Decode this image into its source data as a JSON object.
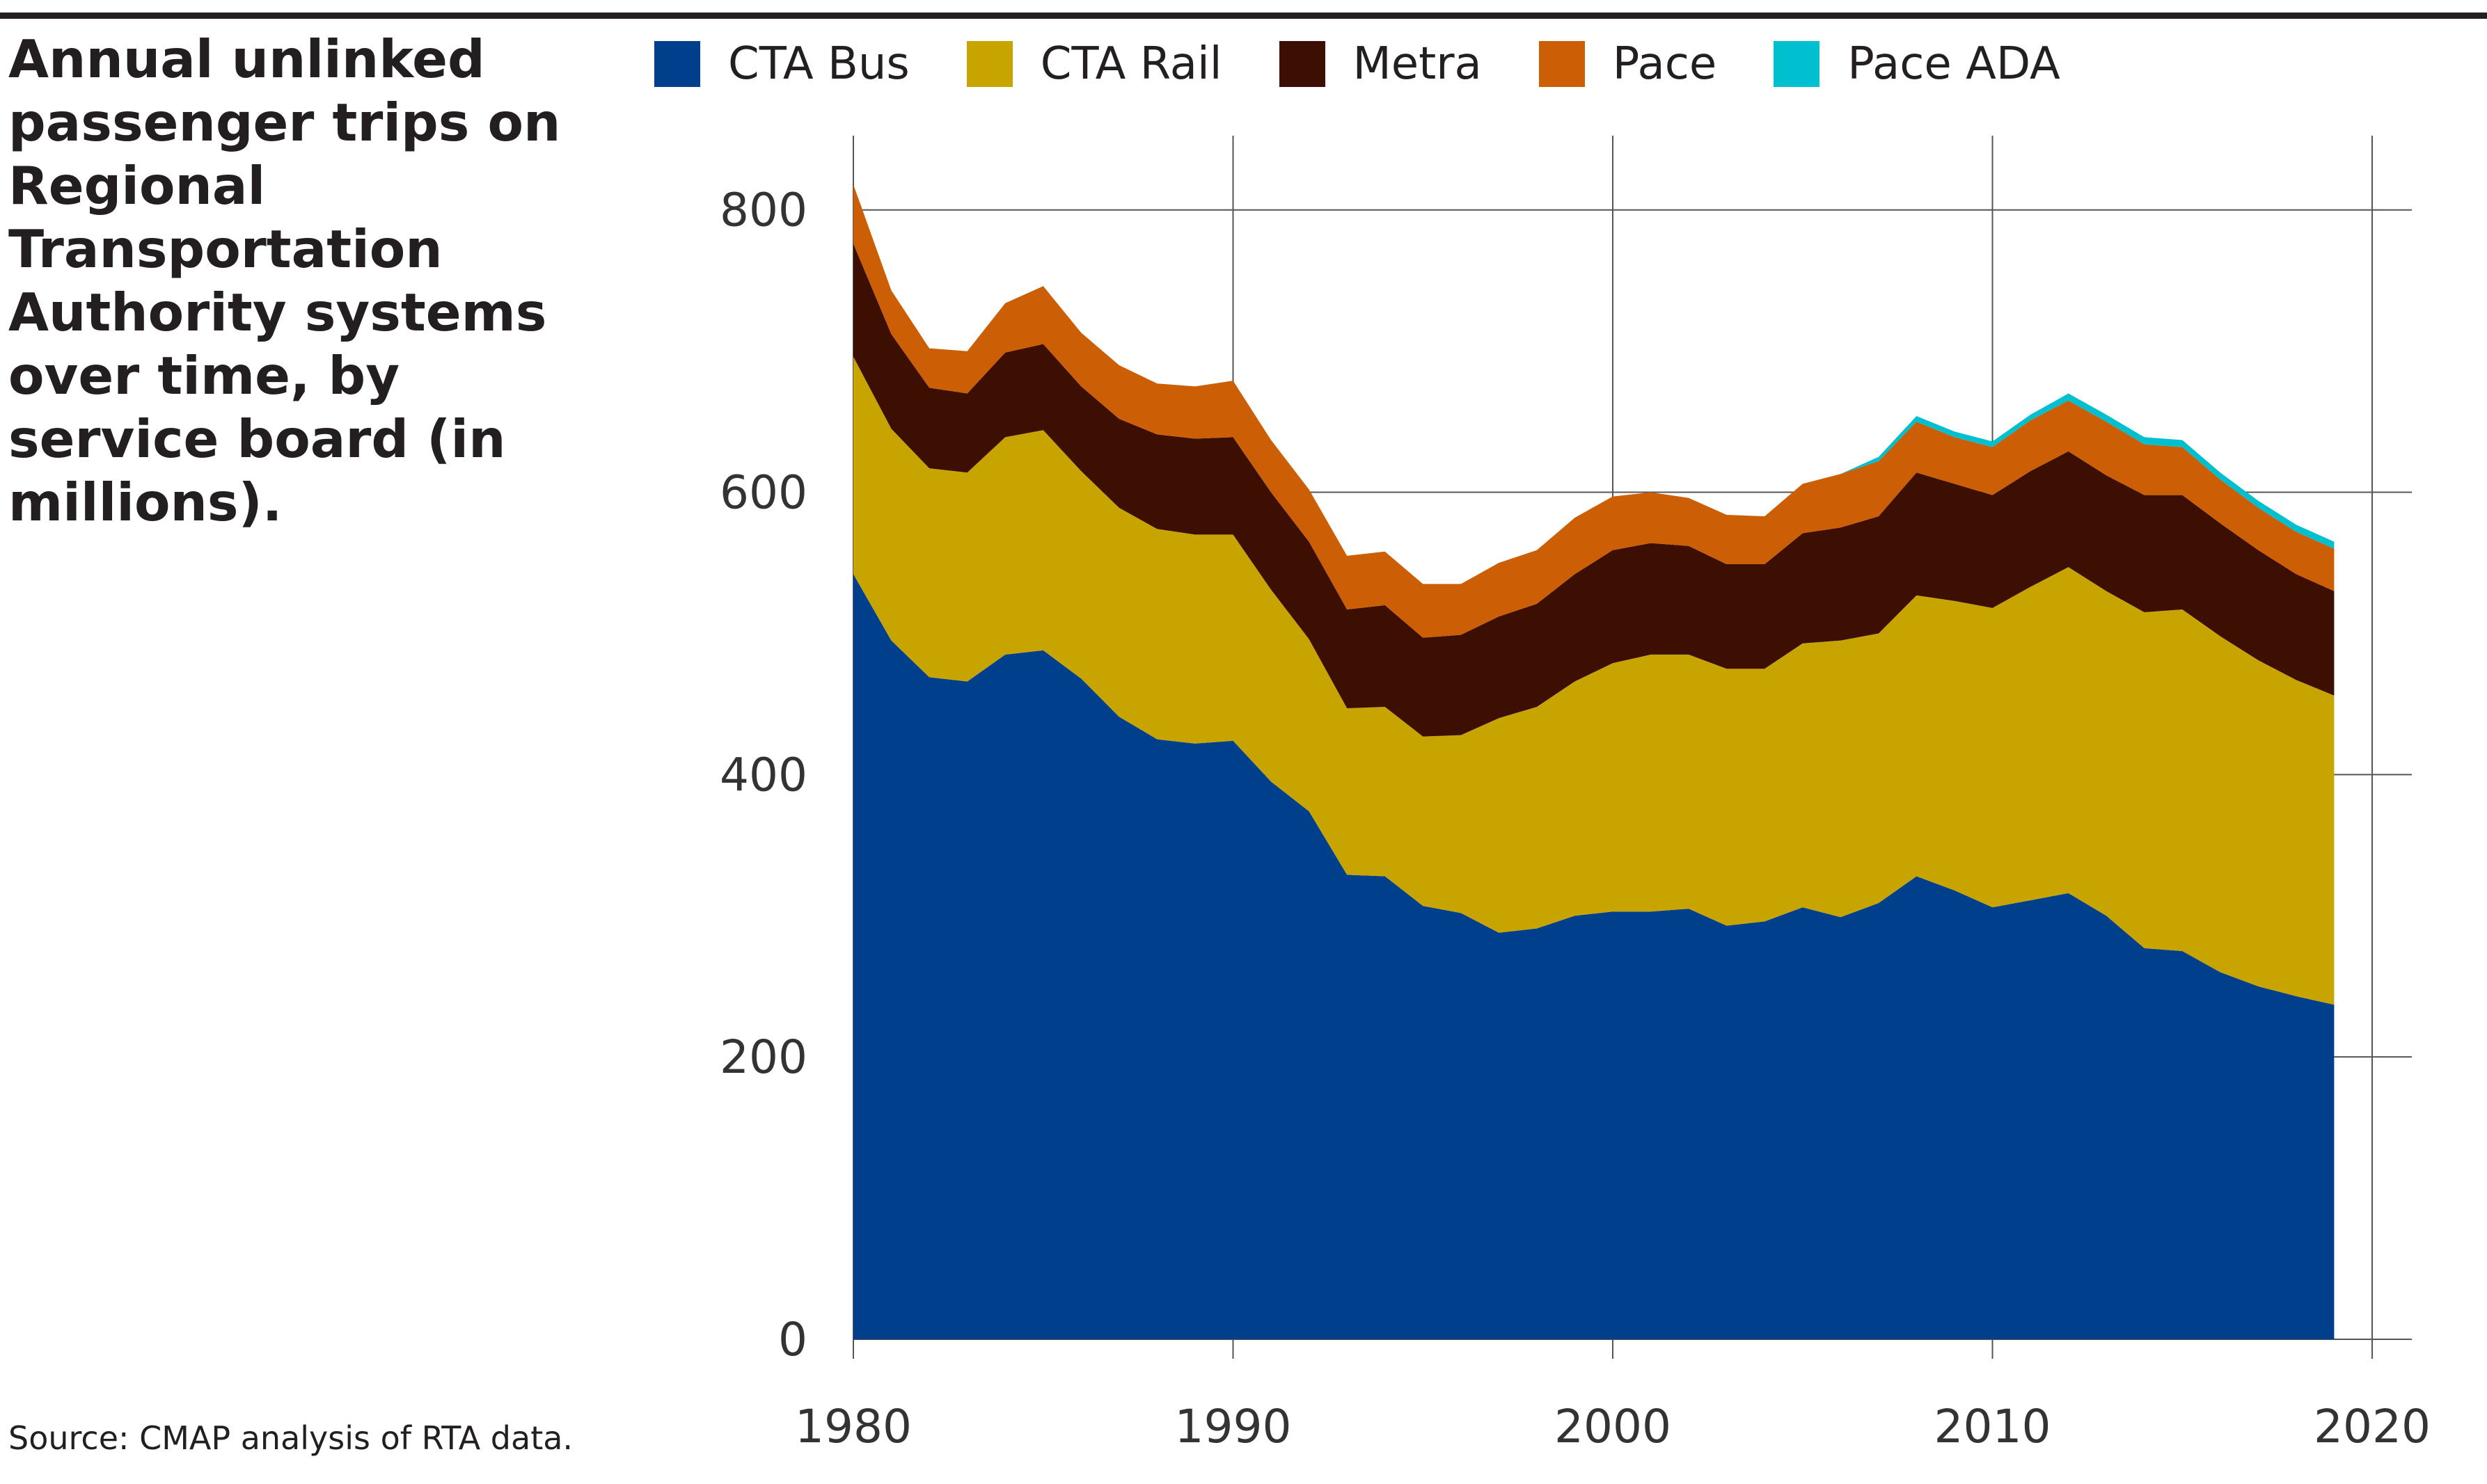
{
  "title": "Annual unlinked passenger trips on Regional Transportation Authority systems over time, by service board (in millions).",
  "source": "Source: CMAP analysis of RTA data.",
  "chart_data": {
    "type": "area",
    "stacked": true,
    "title": "Annual unlinked passenger trips on Regional Transportation Authority systems over time, by service board (in millions).",
    "xlabel": "",
    "ylabel": "",
    "xlim": [
      1980,
      2021
    ],
    "ylim": [
      0,
      860
    ],
    "x_ticks": [
      1980,
      1990,
      2000,
      2010,
      2020
    ],
    "y_ticks": [
      0,
      200,
      400,
      600,
      800
    ],
    "grid": true,
    "legend_position": "top",
    "x": [
      1980,
      1981,
      1982,
      1983,
      1984,
      1985,
      1986,
      1987,
      1988,
      1989,
      1990,
      1991,
      1992,
      1993,
      1994,
      1995,
      1996,
      1997,
      1998,
      1999,
      2000,
      2001,
      2002,
      2003,
      2004,
      2005,
      2006,
      2007,
      2008,
      2009,
      2010,
      2011,
      2012,
      2013,
      2014,
      2015,
      2016,
      2017,
      2018,
      2019
    ],
    "series": [
      {
        "name": "CTA Bus",
        "color": "#003f8c",
        "values": [
          542,
          495,
          469,
          466,
          485,
          488,
          468,
          441,
          425,
          422,
          424,
          395,
          374,
          329,
          328,
          307,
          302,
          288,
          291,
          300,
          303,
          303,
          305,
          293,
          296,
          306,
          299,
          309,
          328,
          318,
          306,
          311,
          316,
          300,
          277,
          275,
          260,
          250,
          243,
          237
        ]
      },
      {
        "name": "CTA Rail",
        "color": "#c8a400",
        "values": [
          154,
          150,
          148,
          148,
          154,
          156,
          147,
          148,
          149,
          148,
          146,
          136,
          122,
          118,
          120,
          120,
          126,
          152,
          157,
          166,
          176,
          182,
          180,
          182,
          179,
          187,
          196,
          191,
          199,
          205,
          212,
          222,
          231,
          230,
          238,
          242,
          238,
          231,
          224,
          219
        ]
      },
      {
        "name": "Metra",
        "color": "#3c0f02",
        "values": [
          80,
          67,
          57,
          56,
          60,
          61,
          60,
          63,
          67,
          68,
          69,
          69,
          69,
          70,
          72,
          70,
          71,
          72,
          73,
          76,
          80,
          79,
          77,
          74,
          74,
          78,
          80,
          83,
          87,
          83,
          80,
          82,
          82,
          82,
          83,
          81,
          80,
          78,
          75,
          74
        ]
      },
      {
        "name": "Pace",
        "color": "#cc5e06",
        "values": [
          42,
          31,
          28,
          30,
          35,
          41,
          38,
          38,
          36,
          37,
          40,
          37,
          37,
          38,
          38,
          38,
          36,
          38,
          38,
          40,
          38,
          36,
          34,
          35,
          34,
          35,
          38,
          39,
          36,
          33,
          34,
          36,
          36,
          38,
          36,
          34,
          31,
          30,
          30,
          30
        ]
      },
      {
        "name": "Pace ADA",
        "color": "#00c0d0",
        "values": [
          0,
          0,
          0,
          0,
          0,
          0,
          0,
          0,
          0,
          0,
          0,
          0,
          0,
          0,
          0,
          0,
          0,
          0,
          0,
          0,
          0,
          0,
          0,
          0,
          0,
          0,
          0,
          3,
          4,
          4,
          4,
          4,
          5,
          5,
          5,
          5,
          5,
          5,
          5,
          5
        ]
      }
    ]
  }
}
